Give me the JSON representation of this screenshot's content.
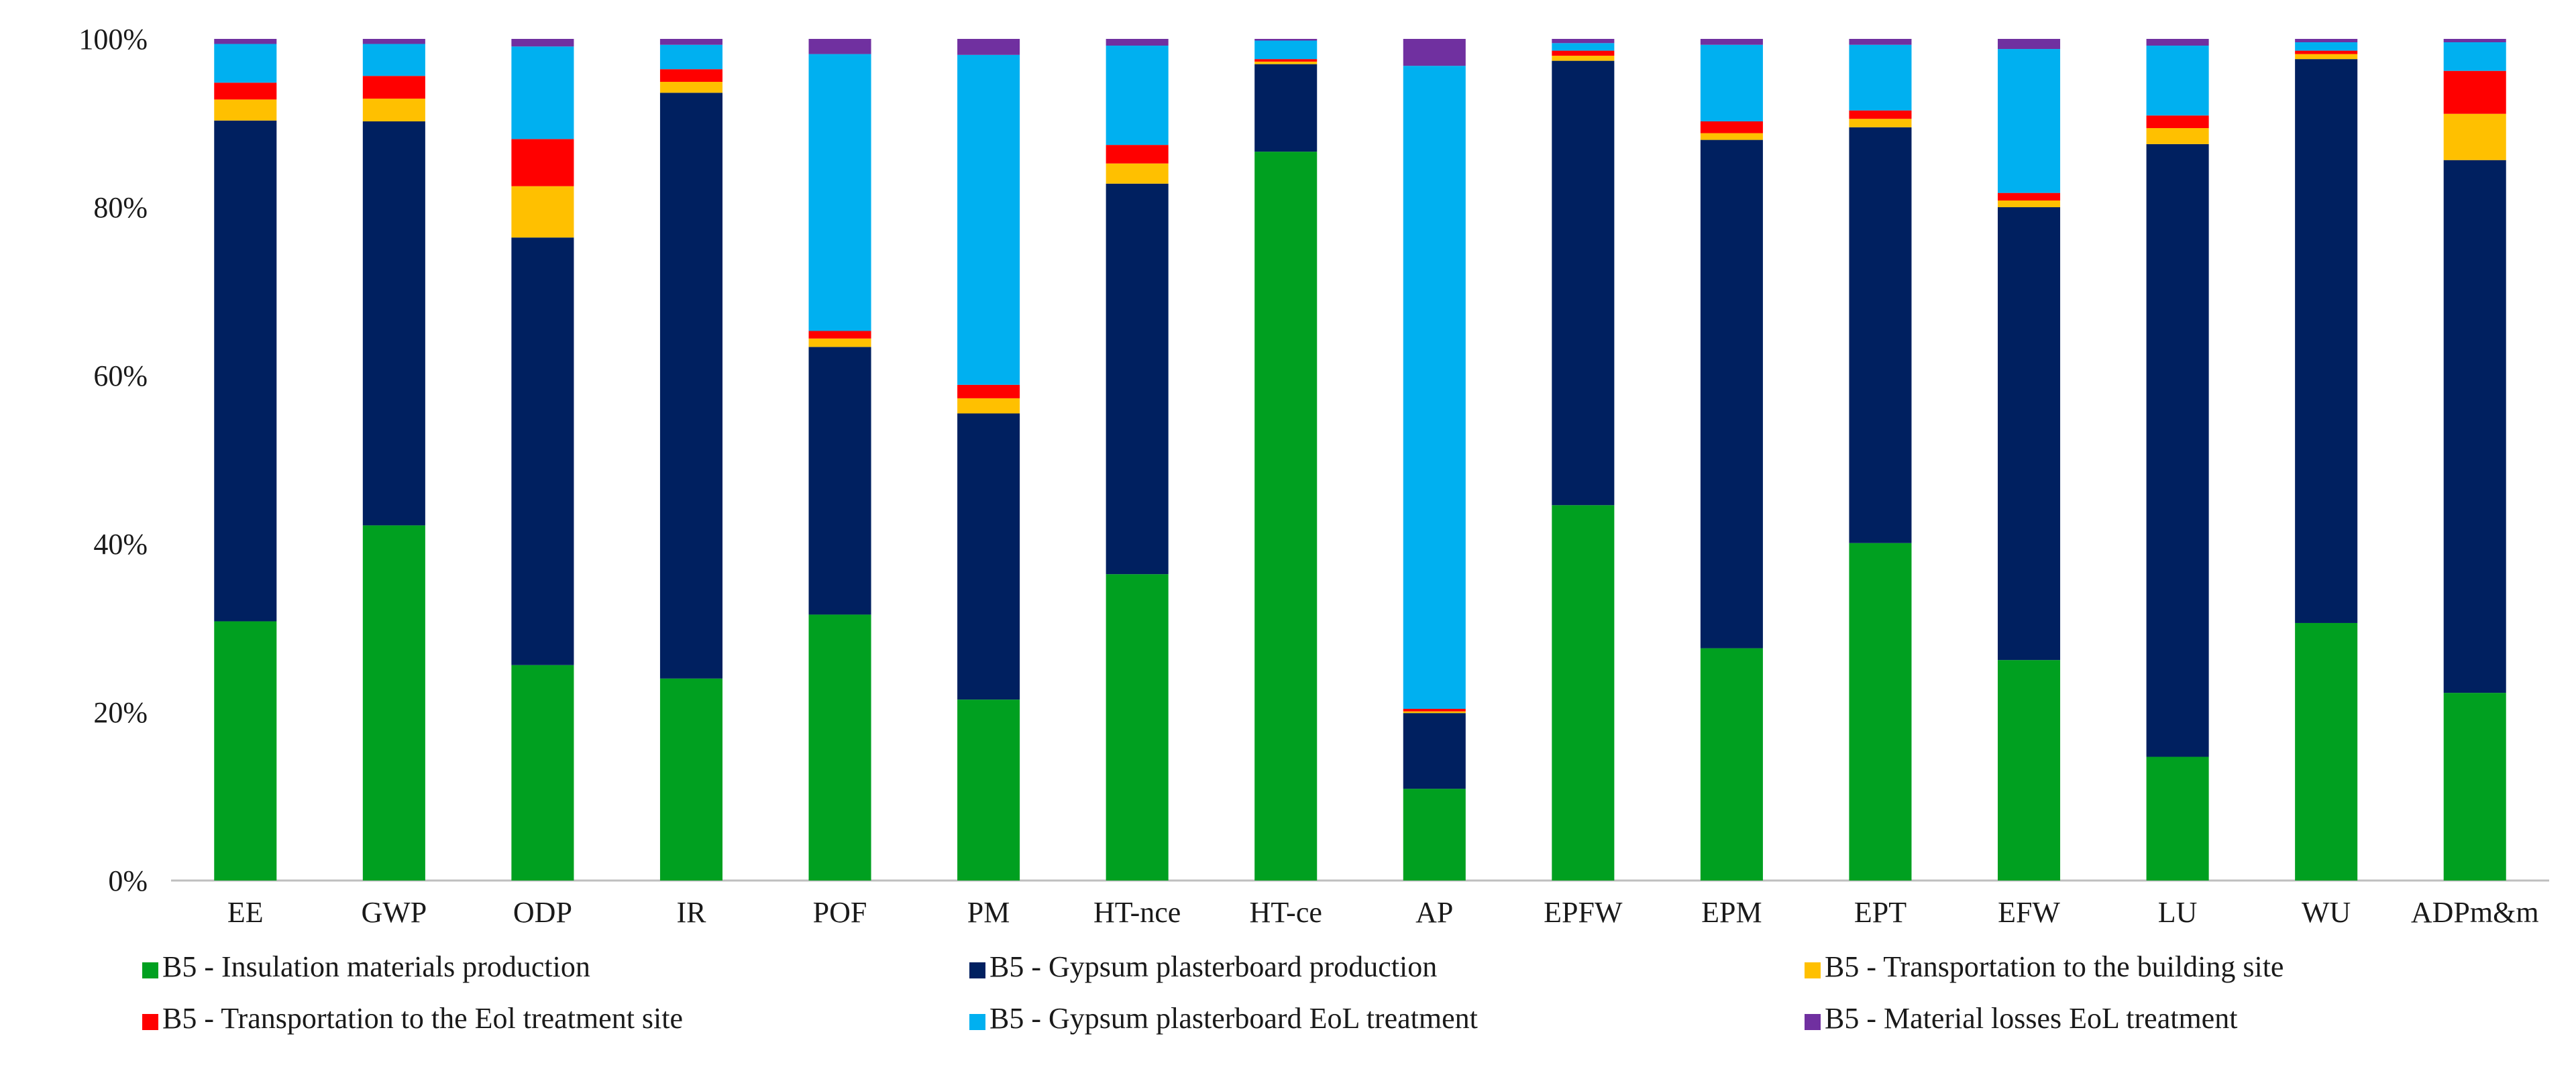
{
  "chart_data": {
    "type": "bar",
    "stacked": true,
    "normalized_percent": true,
    "ylim": [
      0,
      100
    ],
    "yticks": [
      0,
      20,
      40,
      60,
      80,
      100
    ],
    "ytick_labels": [
      "0%",
      "20%",
      "40%",
      "60%",
      "80%",
      "100%"
    ],
    "grid": false,
    "legend_position": "bottom",
    "categories": [
      "EE",
      "GWP",
      "ODP",
      "IR",
      "POF",
      "PM",
      "HT-nce",
      "HT-ce",
      "AP",
      "EPFW",
      "EPM",
      "EPT",
      "EFW",
      "LU",
      "WU",
      "ADPm&m"
    ],
    "series": [
      {
        "name": "B5 - Insulation materials production",
        "color": "#00A020",
        "values": [
          30.8,
          42.2,
          25.6,
          24.0,
          31.6,
          21.5,
          36.4,
          86.6,
          10.9,
          44.6,
          27.6,
          40.1,
          26.2,
          14.7,
          30.6,
          22.3
        ]
      },
      {
        "name": "B5 - Gypsum plasterboard production",
        "color": "#002060",
        "values": [
          59.5,
          48.0,
          50.8,
          69.6,
          31.8,
          34.0,
          46.4,
          10.4,
          9.0,
          52.8,
          60.4,
          49.4,
          53.8,
          72.8,
          67.0,
          63.3
        ]
      },
      {
        "name": "B5 - Transportation to the building site",
        "color": "#FFC000",
        "values": [
          2.5,
          2.7,
          6.1,
          1.3,
          1.0,
          1.8,
          2.4,
          0.3,
          0.2,
          0.6,
          0.8,
          1.0,
          0.8,
          1.9,
          0.6,
          5.5
        ]
      },
      {
        "name": "B5 - Transportation to the Eol treatment site",
        "color": "#FF0000",
        "values": [
          2.0,
          2.7,
          5.6,
          1.5,
          0.9,
          1.6,
          2.2,
          0.3,
          0.3,
          0.6,
          1.4,
          1.0,
          0.9,
          1.5,
          0.4,
          5.1
        ]
      },
      {
        "name": "B5 - Gypsum plasterboard EoL treatment",
        "color": "#00B0F0",
        "values": [
          4.6,
          3.8,
          11.0,
          2.9,
          32.9,
          39.2,
          11.8,
          2.2,
          76.4,
          0.9,
          9.1,
          7.8,
          17.1,
          8.3,
          1.0,
          3.4
        ]
      },
      {
        "name": "B5 - Material losses EoL treatment",
        "color": "#7030A0",
        "values": [
          0.6,
          0.6,
          0.9,
          0.7,
          1.8,
          1.9,
          0.8,
          0.2,
          3.2,
          0.5,
          0.7,
          0.7,
          1.2,
          0.8,
          0.4,
          0.4
        ]
      }
    ]
  }
}
